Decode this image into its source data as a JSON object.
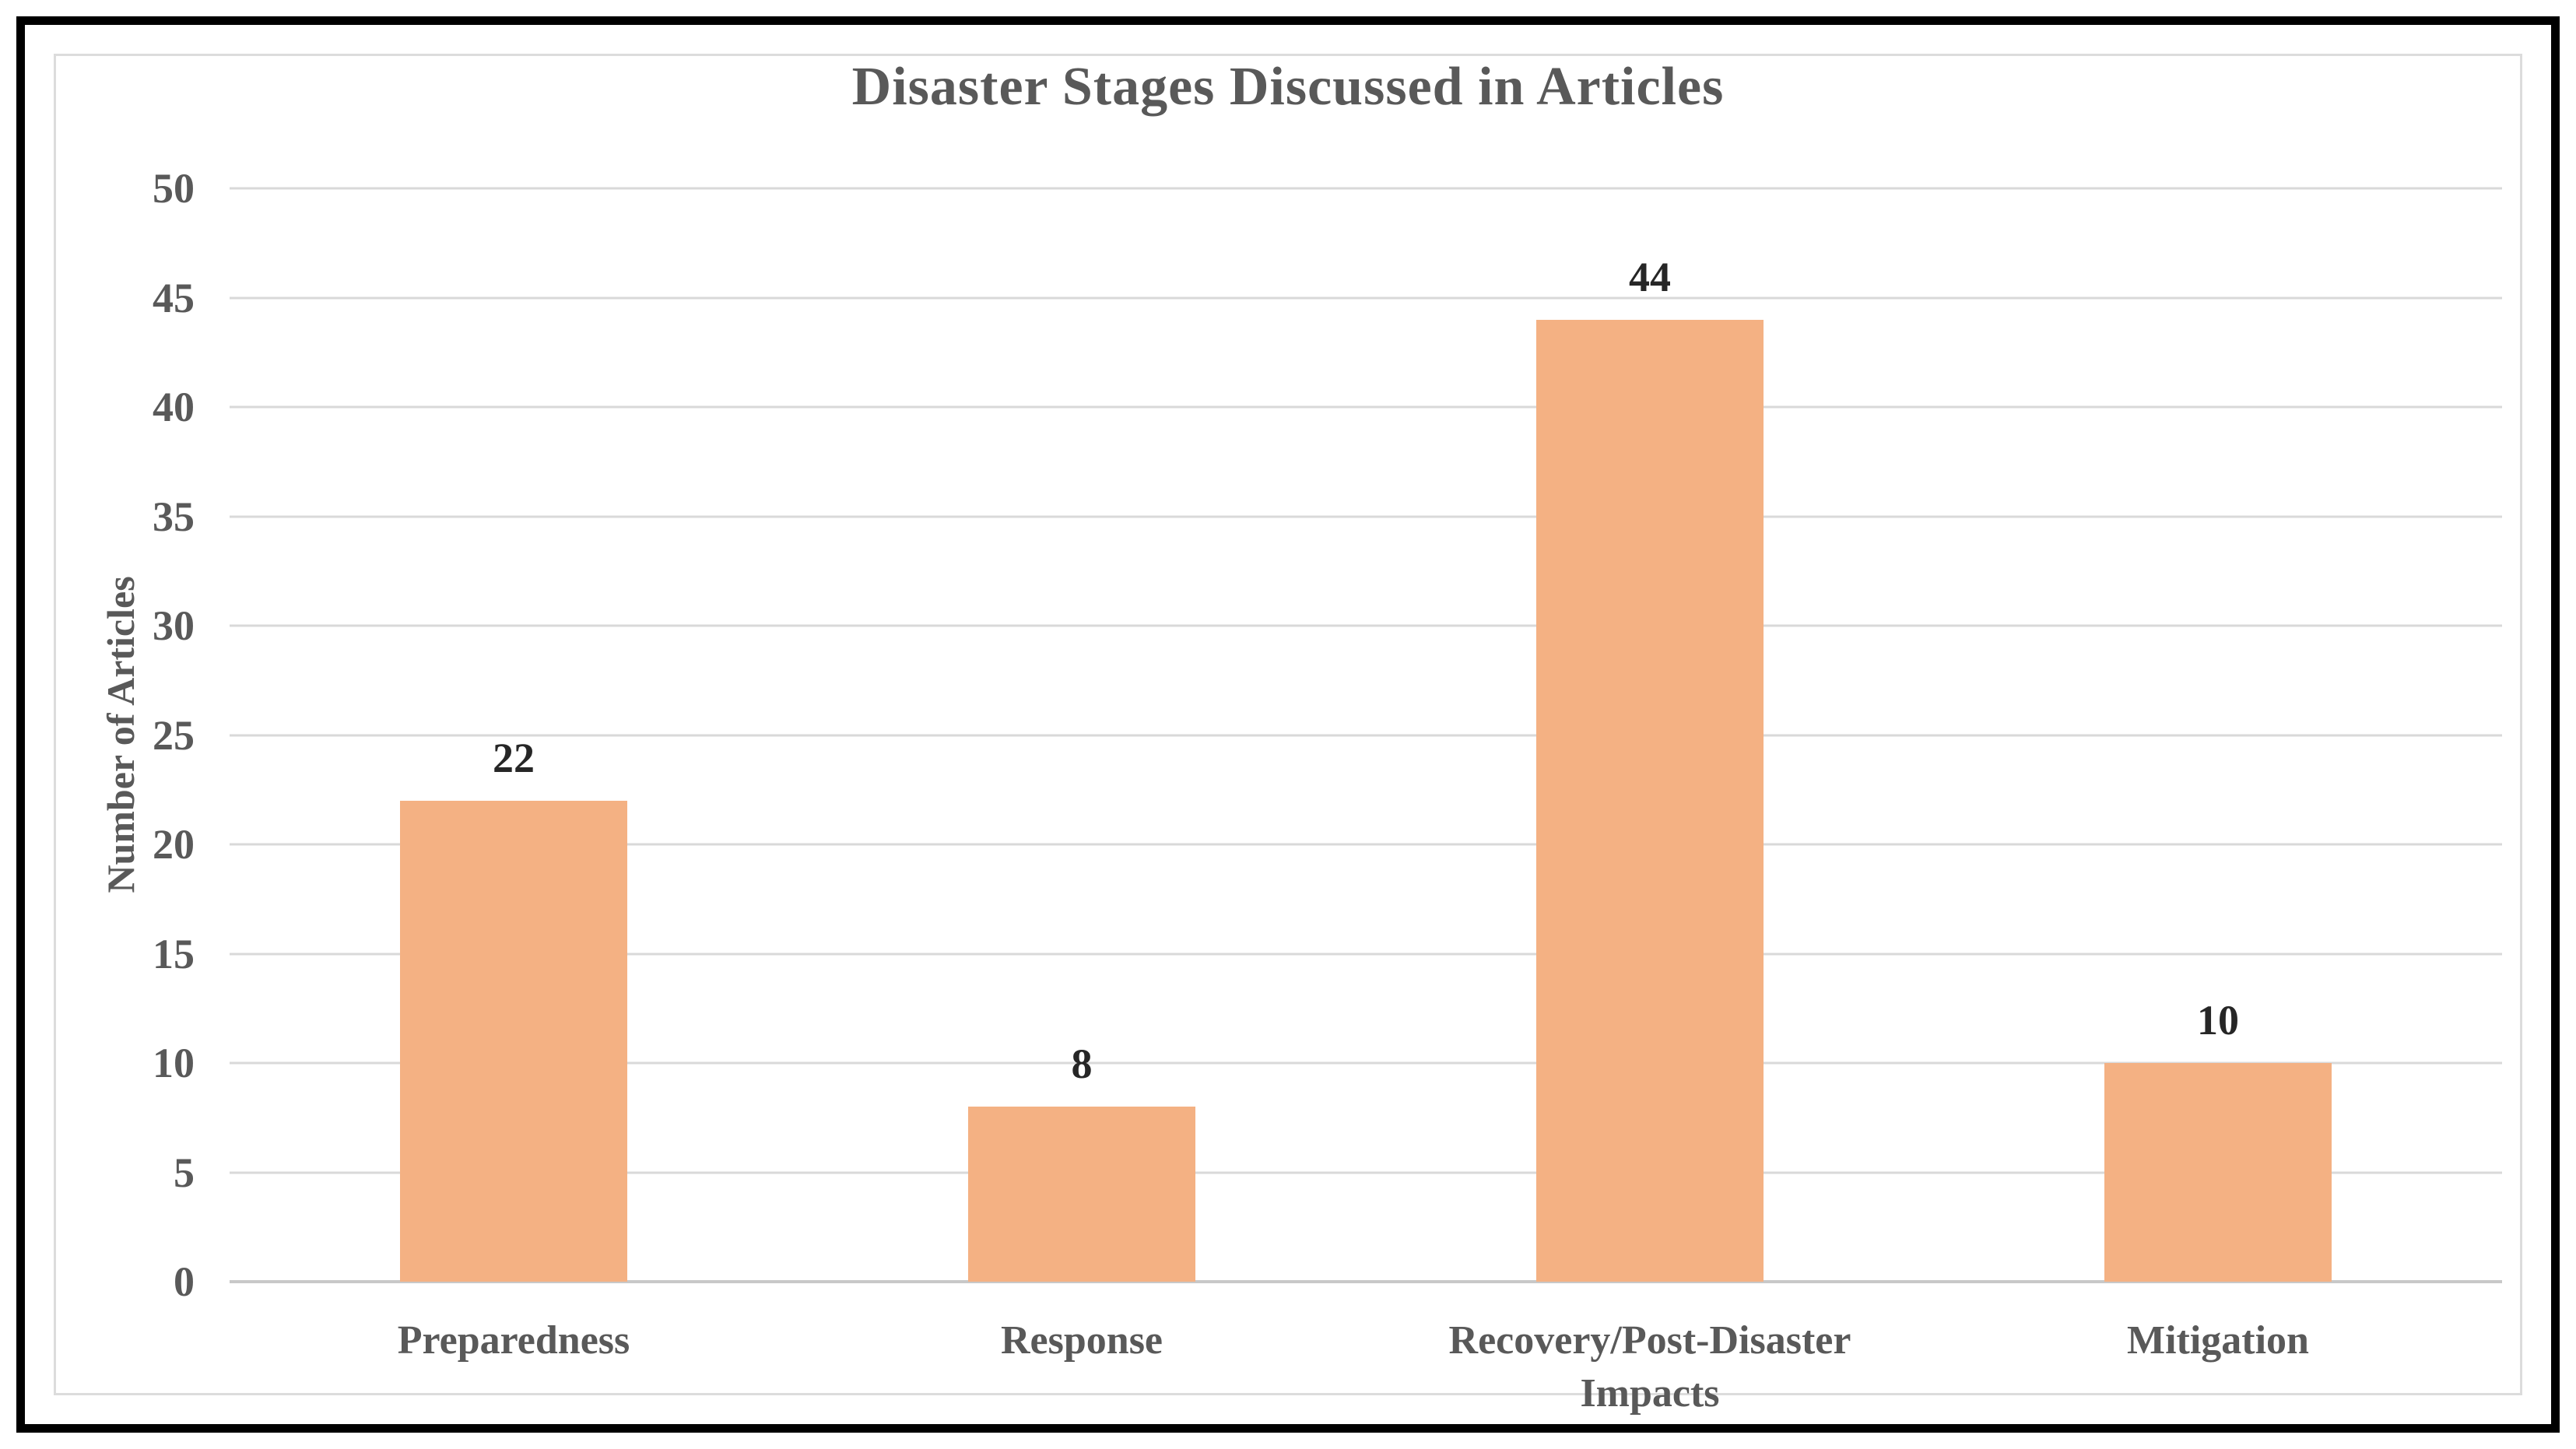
{
  "chart_data": {
    "type": "bar",
    "title": "Disaster Stages Discussed in Articles",
    "categories": [
      "Preparedness",
      "Response",
      "Recovery/Post-Disaster Impacts",
      "Mitigation"
    ],
    "values": [
      22,
      8,
      44,
      10
    ],
    "xlabel": "",
    "ylabel": "Number of Articles",
    "ylim": [
      0,
      50
    ],
    "yticks": [
      0,
      5,
      10,
      15,
      20,
      25,
      30,
      35,
      40,
      45,
      50
    ],
    "grid": true,
    "legend": false,
    "data_labels_shown": true,
    "colors": {
      "bar_fill": "#F4B183",
      "gridline": "#D9D9D9",
      "axis_line": "#C8C8C8",
      "title_text": "#595959",
      "axis_text": "#595959",
      "data_label_text": "#262626",
      "frame_border": "#000000",
      "inner_frame_border": "#DCDCDC",
      "background": "#FFFFFF"
    }
  }
}
